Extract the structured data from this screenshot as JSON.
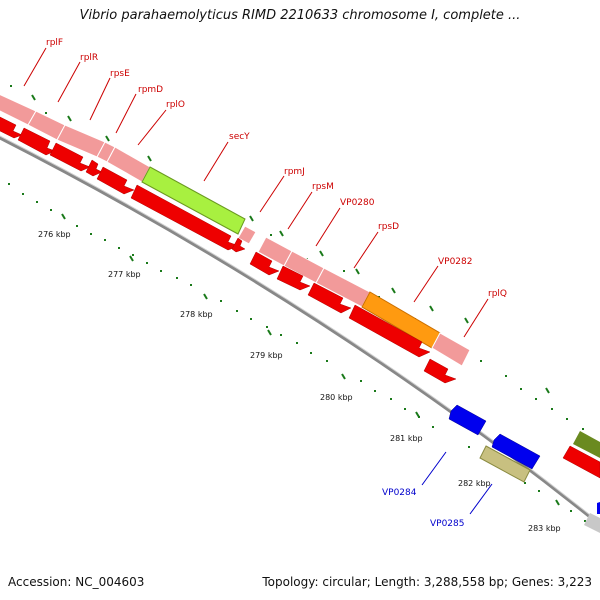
{
  "title": "Vibrio parahaemolyticus RIMD 2210633 chromosome I, complete ...",
  "footer": {
    "accession": "Accession: NC_004603",
    "summary": "Topology: circular; Length: 3,288,558 bp; Genes: 3,223"
  },
  "colors": {
    "ribosomal_feature": "#f29a9a",
    "cds_forward": "#ee0000",
    "cds_reverse": "#0000ee",
    "secY": "#a8f040",
    "VP0282": "#ff9a10",
    "VP0285": "#c8c080",
    "distant_feature": "#6a8a20",
    "tick": "#1a7a1a",
    "backbone": "#888888",
    "label_forward": "#cc0000",
    "label_reverse": "#0000cc"
  },
  "ticks": [
    "276 kbp",
    "277 kbp",
    "278 kbp",
    "279 kbp",
    "280 kbp",
    "281 kbp",
    "282 kbp",
    "283 kbp"
  ],
  "genes": [
    {
      "name": "rplF",
      "strand": "forward"
    },
    {
      "name": "rplR",
      "strand": "forward"
    },
    {
      "name": "rpsE",
      "strand": "forward"
    },
    {
      "name": "rpmD",
      "strand": "forward"
    },
    {
      "name": "rplO",
      "strand": "forward"
    },
    {
      "name": "secY",
      "strand": "forward"
    },
    {
      "name": "rpmJ",
      "strand": "forward"
    },
    {
      "name": "rpsM",
      "strand": "forward"
    },
    {
      "name": "VP0280",
      "strand": "forward"
    },
    {
      "name": "rpsD",
      "strand": "forward"
    },
    {
      "name": "VP0282",
      "strand": "forward"
    },
    {
      "name": "rplQ",
      "strand": "forward"
    },
    {
      "name": "VP0284",
      "strand": "reverse"
    },
    {
      "name": "VP0285",
      "strand": "reverse"
    }
  ]
}
